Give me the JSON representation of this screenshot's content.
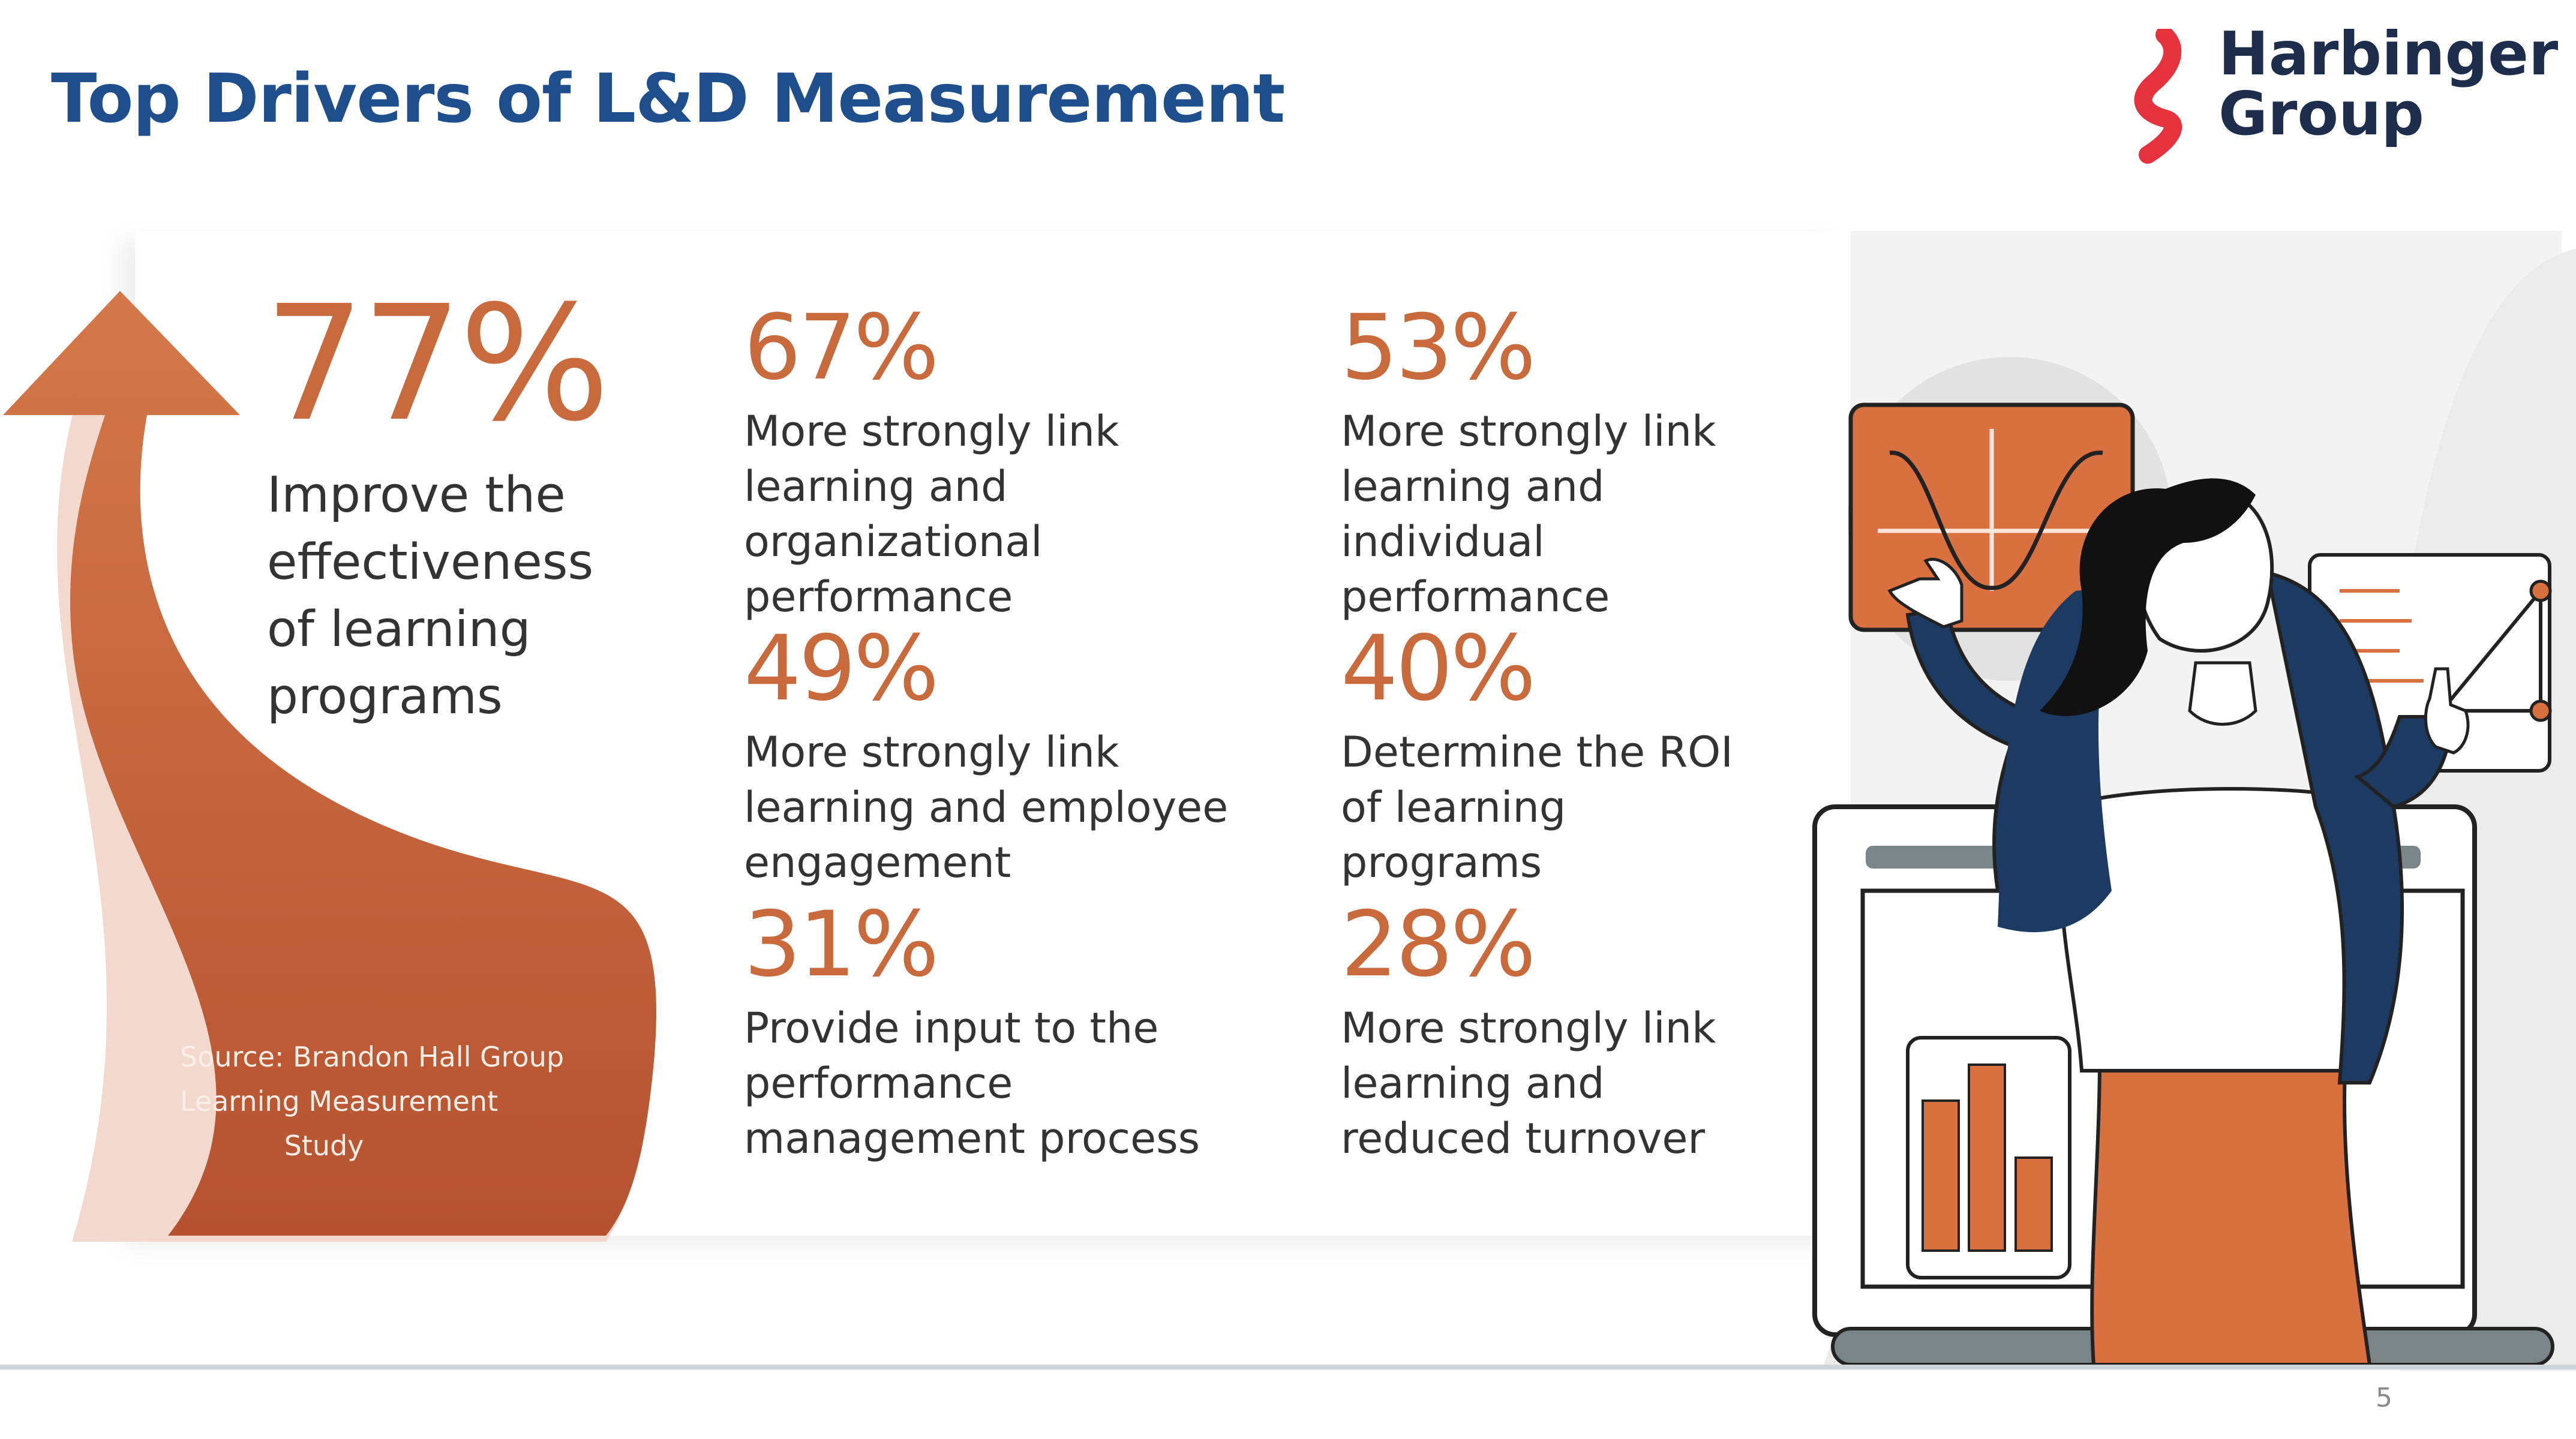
{
  "slide": {
    "title": "Top Drivers of L&D Measurement",
    "page_number": "5"
  },
  "logo": {
    "line1": "Harbinger",
    "line2": "Group",
    "brand_color": "#e6323c",
    "text_color": "#1d2d4b"
  },
  "headline_stat": {
    "value": "77%",
    "description": "Improve the effectiveness of learning programs"
  },
  "source": {
    "line1": "Source: Brandon Hall Group",
    "line2": "Learning Measurement",
    "line3": "Study"
  },
  "stats": [
    {
      "value": "67%",
      "description": "More strongly link learning and organizational performance"
    },
    {
      "value": "53%",
      "description": "More strongly link learning and individual performance"
    },
    {
      "value": "49%",
      "description": "More strongly link learning and employee engagement"
    },
    {
      "value": "40%",
      "description": "Determine the ROI of learning programs"
    },
    {
      "value": "31%",
      "description": "Provide input to the performance management process"
    },
    {
      "value": "28%",
      "description": "More strongly link learning and reduced turnover"
    }
  ],
  "colors": {
    "title": "#1f4e8c",
    "accent_orange": "#c96a3d",
    "illustration_navy": "#1d3a63"
  }
}
